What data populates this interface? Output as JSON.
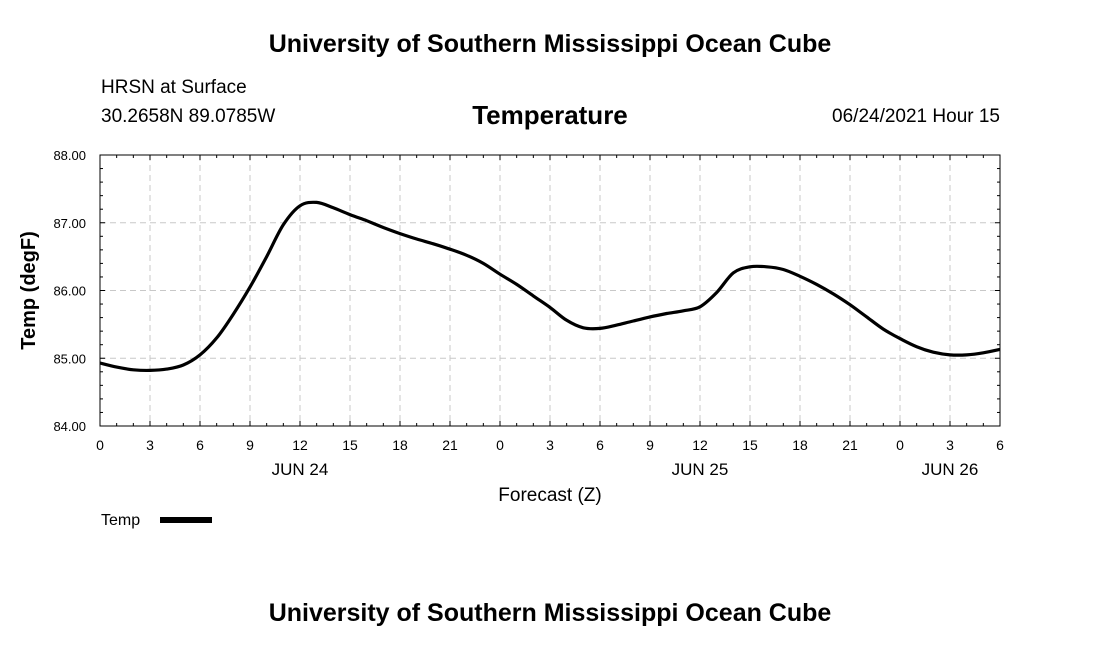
{
  "header": {
    "top_title": "University of Southern Mississippi Ocean Cube",
    "station": "HRSN at Surface",
    "coordinates": "30.2658N  89.0785W",
    "variable_title": "Temperature",
    "datetime": "06/24/2021 Hour 15"
  },
  "footer": {
    "bottom_title": "University of Southern Mississippi Ocean Cube"
  },
  "chart_data": {
    "type": "line",
    "title": "Temperature",
    "xlabel": "Forecast (Z)",
    "ylabel": "Temp (degF)",
    "xlim": [
      0,
      54
    ],
    "ylim": [
      84.0,
      88.0
    ],
    "grid": true,
    "x_ticks": [
      0,
      3,
      6,
      9,
      12,
      15,
      18,
      21,
      24,
      27,
      30,
      33,
      36,
      39,
      42,
      45,
      48,
      51,
      54
    ],
    "x_tick_labels": [
      "0",
      "3",
      "6",
      "9",
      "12",
      "15",
      "18",
      "21",
      "0",
      "3",
      "6",
      "9",
      "12",
      "15",
      "18",
      "21",
      "0",
      "3",
      "6"
    ],
    "y_ticks": [
      84.0,
      85.0,
      86.0,
      87.0,
      88.0
    ],
    "y_tick_labels": [
      "84.00",
      "85.00",
      "86.00",
      "87.00",
      "88.00"
    ],
    "date_labels": [
      {
        "x": 12,
        "label": "JUN 24"
      },
      {
        "x": 36,
        "label": "JUN 25"
      },
      {
        "x": 51,
        "label": "JUN 26"
      }
    ],
    "legend": {
      "position": "bottom-left",
      "entries": [
        "Temp"
      ]
    },
    "series": [
      {
        "name": "Temp",
        "color": "#000000",
        "x": [
          0,
          1,
          2,
          3,
          4,
          5,
          6,
          7,
          8,
          9,
          10,
          11,
          12,
          13,
          14,
          15,
          16,
          17,
          18,
          19,
          20,
          21,
          22,
          23,
          24,
          25,
          26,
          27,
          28,
          29,
          30,
          31,
          32,
          33,
          34,
          35,
          36,
          37,
          38,
          39,
          40,
          41,
          42,
          43,
          44,
          45,
          46,
          47,
          48,
          49,
          50,
          51,
          52,
          53,
          54
        ],
        "values": [
          84.93,
          84.87,
          84.83,
          84.82,
          84.84,
          84.9,
          85.05,
          85.3,
          85.65,
          86.05,
          86.5,
          86.97,
          87.25,
          87.3,
          87.22,
          87.12,
          87.03,
          86.93,
          86.84,
          86.76,
          86.69,
          86.61,
          86.52,
          86.4,
          86.24,
          86.09,
          85.92,
          85.75,
          85.56,
          85.45,
          85.44,
          85.49,
          85.55,
          85.61,
          85.66,
          85.7,
          85.76,
          85.97,
          86.26,
          86.35,
          86.35,
          86.31,
          86.21,
          86.09,
          85.95,
          85.79,
          85.61,
          85.43,
          85.29,
          85.17,
          85.09,
          85.05,
          85.05,
          85.08,
          85.13
        ]
      }
    ]
  }
}
